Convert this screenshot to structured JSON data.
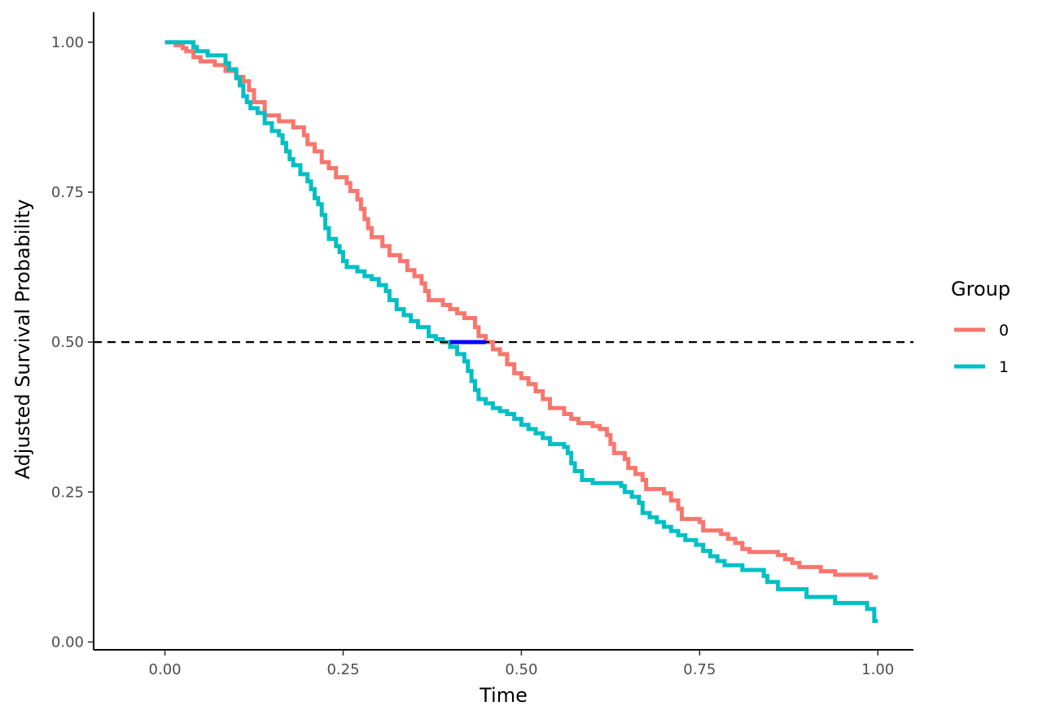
{
  "chart_data": {
    "type": "line",
    "step": true,
    "title": "",
    "xlabel": "Time",
    "ylabel": "Adjusted Survival Probability",
    "xlim": [
      -0.1,
      1.05
    ],
    "ylim": [
      -0.013,
      1.05
    ],
    "x_ticks": [
      0,
      0.25,
      0.5,
      0.75,
      1.0
    ],
    "x_tick_labels": [
      "0.00",
      "0.25",
      "0.50",
      "0.75",
      "1.00"
    ],
    "y_ticks": [
      0,
      0.25,
      0.5,
      0.75,
      1.0
    ],
    "y_tick_labels": [
      "0.00",
      "0.25",
      "0.50",
      "0.75",
      "1.00"
    ],
    "grid": false,
    "legend": {
      "title": "Group",
      "position": "right"
    },
    "reference_line": {
      "y": 0.5,
      "style": "dashed",
      "color": "#000000"
    },
    "median_segment": {
      "x_start": 0.4,
      "x_end": 0.45,
      "y": 0.5,
      "color": "#0000ff"
    },
    "series": [
      {
        "name": "0",
        "color": "#F8766D",
        "points": [
          [
            0.0,
            1.0
          ],
          [
            0.015,
            0.995
          ],
          [
            0.025,
            0.99
          ],
          [
            0.03,
            0.985
          ],
          [
            0.04,
            0.975
          ],
          [
            0.05,
            0.968
          ],
          [
            0.07,
            0.962
          ],
          [
            0.085,
            0.952
          ],
          [
            0.1,
            0.942
          ],
          [
            0.11,
            0.935
          ],
          [
            0.118,
            0.92
          ],
          [
            0.125,
            0.9
          ],
          [
            0.14,
            0.878
          ],
          [
            0.16,
            0.868
          ],
          [
            0.18,
            0.858
          ],
          [
            0.195,
            0.845
          ],
          [
            0.2,
            0.83
          ],
          [
            0.21,
            0.818
          ],
          [
            0.22,
            0.8
          ],
          [
            0.23,
            0.79
          ],
          [
            0.24,
            0.775
          ],
          [
            0.255,
            0.765
          ],
          [
            0.26,
            0.752
          ],
          [
            0.27,
            0.738
          ],
          [
            0.275,
            0.722
          ],
          [
            0.28,
            0.705
          ],
          [
            0.285,
            0.69
          ],
          [
            0.29,
            0.675
          ],
          [
            0.305,
            0.66
          ],
          [
            0.315,
            0.645
          ],
          [
            0.33,
            0.635
          ],
          [
            0.34,
            0.62
          ],
          [
            0.35,
            0.61
          ],
          [
            0.36,
            0.598
          ],
          [
            0.365,
            0.585
          ],
          [
            0.37,
            0.57
          ],
          [
            0.39,
            0.562
          ],
          [
            0.4,
            0.555
          ],
          [
            0.41,
            0.548
          ],
          [
            0.42,
            0.54
          ],
          [
            0.435,
            0.525
          ],
          [
            0.44,
            0.51
          ],
          [
            0.45,
            0.5
          ],
          [
            0.46,
            0.488
          ],
          [
            0.47,
            0.48
          ],
          [
            0.48,
            0.463
          ],
          [
            0.49,
            0.448
          ],
          [
            0.5,
            0.44
          ],
          [
            0.51,
            0.43
          ],
          [
            0.52,
            0.418
          ],
          [
            0.53,
            0.405
          ],
          [
            0.54,
            0.39
          ],
          [
            0.56,
            0.38
          ],
          [
            0.57,
            0.372
          ],
          [
            0.58,
            0.365
          ],
          [
            0.6,
            0.36
          ],
          [
            0.61,
            0.355
          ],
          [
            0.62,
            0.345
          ],
          [
            0.625,
            0.33
          ],
          [
            0.63,
            0.315
          ],
          [
            0.645,
            0.305
          ],
          [
            0.65,
            0.29
          ],
          [
            0.66,
            0.28
          ],
          [
            0.67,
            0.27
          ],
          [
            0.675,
            0.255
          ],
          [
            0.7,
            0.248
          ],
          [
            0.71,
            0.236
          ],
          [
            0.72,
            0.222
          ],
          [
            0.725,
            0.205
          ],
          [
            0.75,
            0.2
          ],
          [
            0.755,
            0.186
          ],
          [
            0.78,
            0.18
          ],
          [
            0.79,
            0.172
          ],
          [
            0.8,
            0.165
          ],
          [
            0.81,
            0.155
          ],
          [
            0.82,
            0.15
          ],
          [
            0.86,
            0.145
          ],
          [
            0.87,
            0.138
          ],
          [
            0.88,
            0.132
          ],
          [
            0.89,
            0.125
          ],
          [
            0.92,
            0.118
          ],
          [
            0.94,
            0.112
          ],
          [
            0.99,
            0.108
          ],
          [
            1.0,
            0.108
          ]
        ]
      },
      {
        "name": "1",
        "color": "#00BFC4",
        "points": [
          [
            0.0,
            1.0
          ],
          [
            0.04,
            0.992
          ],
          [
            0.045,
            0.985
          ],
          [
            0.06,
            0.978
          ],
          [
            0.085,
            0.965
          ],
          [
            0.09,
            0.955
          ],
          [
            0.1,
            0.94
          ],
          [
            0.105,
            0.928
          ],
          [
            0.11,
            0.91
          ],
          [
            0.115,
            0.9
          ],
          [
            0.12,
            0.89
          ],
          [
            0.13,
            0.882
          ],
          [
            0.14,
            0.865
          ],
          [
            0.15,
            0.852
          ],
          [
            0.16,
            0.845
          ],
          [
            0.165,
            0.832
          ],
          [
            0.17,
            0.818
          ],
          [
            0.175,
            0.805
          ],
          [
            0.18,
            0.795
          ],
          [
            0.19,
            0.78
          ],
          [
            0.2,
            0.768
          ],
          [
            0.205,
            0.755
          ],
          [
            0.21,
            0.74
          ],
          [
            0.215,
            0.73
          ],
          [
            0.22,
            0.712
          ],
          [
            0.225,
            0.69
          ],
          [
            0.23,
            0.672
          ],
          [
            0.24,
            0.66
          ],
          [
            0.245,
            0.65
          ],
          [
            0.25,
            0.635
          ],
          [
            0.255,
            0.625
          ],
          [
            0.27,
            0.618
          ],
          [
            0.28,
            0.61
          ],
          [
            0.29,
            0.605
          ],
          [
            0.3,
            0.595
          ],
          [
            0.31,
            0.585
          ],
          [
            0.315,
            0.57
          ],
          [
            0.325,
            0.555
          ],
          [
            0.335,
            0.545
          ],
          [
            0.345,
            0.535
          ],
          [
            0.355,
            0.525
          ],
          [
            0.37,
            0.51
          ],
          [
            0.38,
            0.505
          ],
          [
            0.39,
            0.5
          ],
          [
            0.4,
            0.492
          ],
          [
            0.41,
            0.48
          ],
          [
            0.42,
            0.468
          ],
          [
            0.425,
            0.452
          ],
          [
            0.43,
            0.435
          ],
          [
            0.435,
            0.42
          ],
          [
            0.44,
            0.405
          ],
          [
            0.45,
            0.398
          ],
          [
            0.46,
            0.39
          ],
          [
            0.47,
            0.385
          ],
          [
            0.48,
            0.38
          ],
          [
            0.49,
            0.372
          ],
          [
            0.5,
            0.362
          ],
          [
            0.51,
            0.355
          ],
          [
            0.52,
            0.348
          ],
          [
            0.53,
            0.34
          ],
          [
            0.54,
            0.33
          ],
          [
            0.56,
            0.325
          ],
          [
            0.565,
            0.315
          ],
          [
            0.57,
            0.298
          ],
          [
            0.575,
            0.285
          ],
          [
            0.585,
            0.27
          ],
          [
            0.6,
            0.265
          ],
          [
            0.64,
            0.26
          ],
          [
            0.645,
            0.25
          ],
          [
            0.655,
            0.242
          ],
          [
            0.665,
            0.232
          ],
          [
            0.67,
            0.215
          ],
          [
            0.68,
            0.208
          ],
          [
            0.69,
            0.2
          ],
          [
            0.7,
            0.192
          ],
          [
            0.71,
            0.185
          ],
          [
            0.72,
            0.178
          ],
          [
            0.73,
            0.17
          ],
          [
            0.745,
            0.162
          ],
          [
            0.755,
            0.152
          ],
          [
            0.765,
            0.143
          ],
          [
            0.775,
            0.135
          ],
          [
            0.785,
            0.128
          ],
          [
            0.81,
            0.12
          ],
          [
            0.84,
            0.11
          ],
          [
            0.845,
            0.1
          ],
          [
            0.86,
            0.088
          ],
          [
            0.9,
            0.075
          ],
          [
            0.94,
            0.065
          ],
          [
            0.985,
            0.055
          ],
          [
            0.995,
            0.035
          ],
          [
            1.0,
            0.035
          ]
        ]
      }
    ]
  }
}
